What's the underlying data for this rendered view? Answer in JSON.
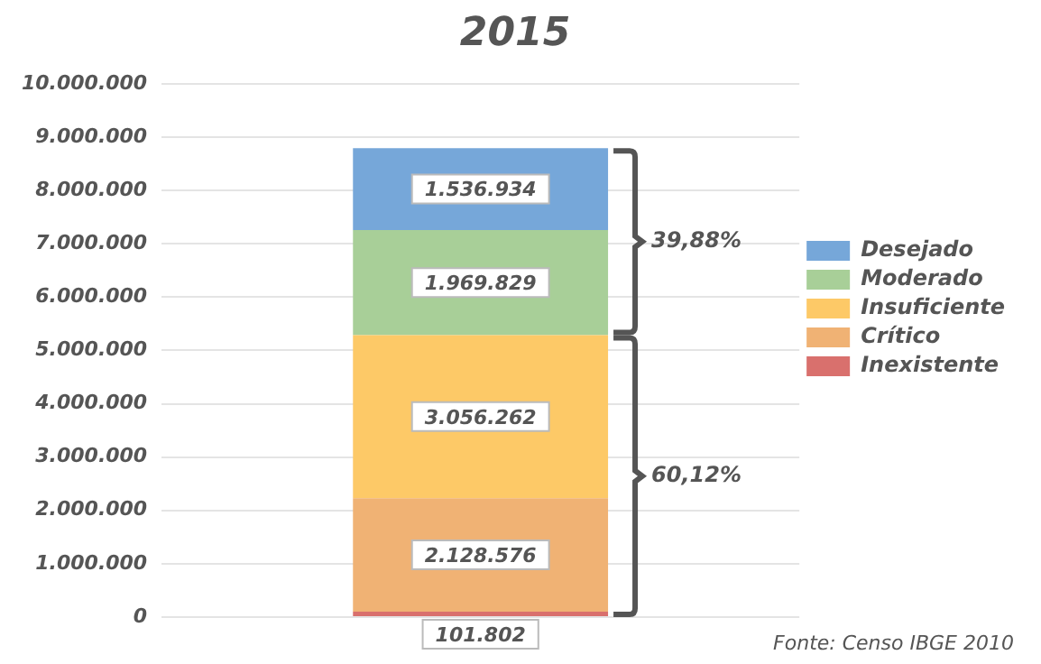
{
  "chart_data": {
    "type": "bar",
    "title": "2015",
    "stacked": true,
    "categories": [
      null
    ],
    "series": [
      {
        "name": "Inexistente",
        "color": "#d9706d",
        "values": [
          101802
        ],
        "value_labels": [
          "101.802"
        ]
      },
      {
        "name": "Crítico",
        "color": "#f0b274",
        "values": [
          2128576
        ],
        "value_labels": [
          "2.128.576"
        ]
      },
      {
        "name": "Insuficiente",
        "color": "#fdc967",
        "values": [
          3056262
        ],
        "value_labels": [
          "3.056.262"
        ]
      },
      {
        "name": "Moderado",
        "color": "#a8cf98",
        "values": [
          1969829
        ],
        "value_labels": [
          "1.969.829"
        ]
      },
      {
        "name": "Desejado",
        "color": "#76a7d9",
        "values": [
          1536934
        ],
        "value_labels": [
          "1.536.934"
        ]
      }
    ],
    "ylim": [
      0,
      10000000
    ],
    "yticks": [
      {
        "value": 0,
        "label": "0"
      },
      {
        "value": 1000000,
        "label": "1.000.000"
      },
      {
        "value": 2000000,
        "label": "2.000.000"
      },
      {
        "value": 3000000,
        "label": "3.000.000"
      },
      {
        "value": 4000000,
        "label": "4.000.000"
      },
      {
        "value": 5000000,
        "label": "5.000.000"
      },
      {
        "value": 6000000,
        "label": "6.000.000"
      },
      {
        "value": 7000000,
        "label": "7.000.000"
      },
      {
        "value": 8000000,
        "label": "8.000.000"
      },
      {
        "value": 9000000,
        "label": "9.000.000"
      },
      {
        "value": 10000000,
        "label": "10.000.000"
      }
    ],
    "grid": "y",
    "legend": "right",
    "tick_labels": "y",
    "annotations": [
      "39,88%",
      "60,12%",
      "Fonte: Censo IBGE 2010"
    ]
  }
}
